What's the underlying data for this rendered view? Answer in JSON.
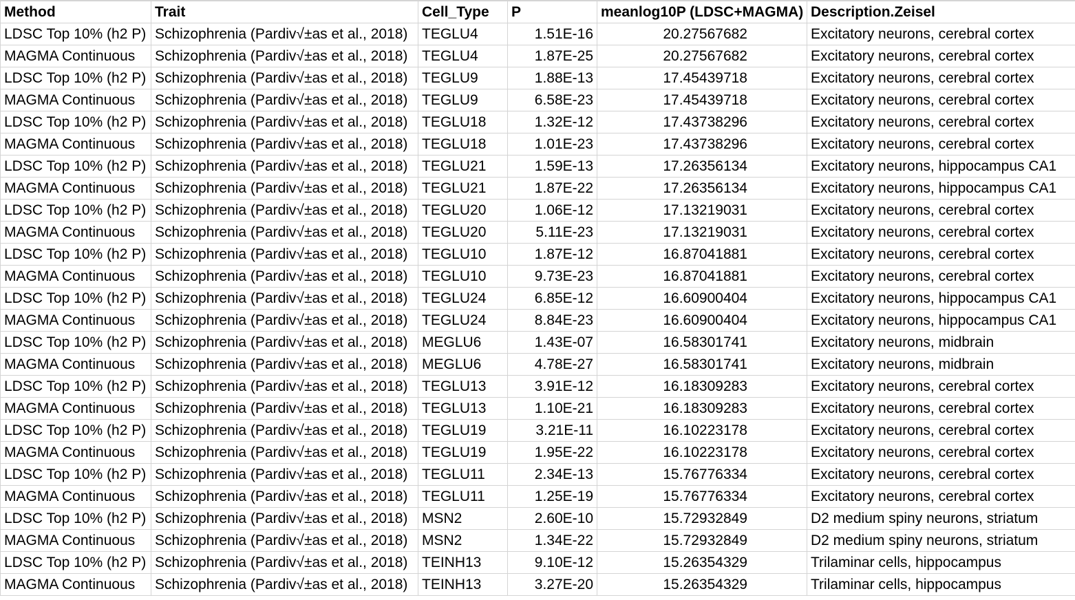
{
  "headers": {
    "method": "Method",
    "trait": "Trait",
    "cell_type": "Cell_Type",
    "p": "P",
    "meanlog": "meanlog10P (LDSC+MAGMA)",
    "description": "Description.Zeisel"
  },
  "rows": [
    {
      "method": "LDSC Top 10% (h2 P)",
      "trait": "Schizophrenia (Pardiv√±as et al., 2018)",
      "cell_type": "TEGLU4",
      "p": "1.51E-16",
      "meanlog": "20.27567682",
      "description": "Excitatory neurons, cerebral cortex"
    },
    {
      "method": "MAGMA Continuous",
      "trait": "Schizophrenia (Pardiv√±as et al., 2018)",
      "cell_type": "TEGLU4",
      "p": "1.87E-25",
      "meanlog": "20.27567682",
      "description": "Excitatory neurons, cerebral cortex"
    },
    {
      "method": "LDSC Top 10% (h2 P)",
      "trait": "Schizophrenia (Pardiv√±as et al., 2018)",
      "cell_type": "TEGLU9",
      "p": "1.88E-13",
      "meanlog": "17.45439718",
      "description": "Excitatory neurons, cerebral cortex"
    },
    {
      "method": "MAGMA Continuous",
      "trait": "Schizophrenia (Pardiv√±as et al., 2018)",
      "cell_type": "TEGLU9",
      "p": "6.58E-23",
      "meanlog": "17.45439718",
      "description": "Excitatory neurons, cerebral cortex"
    },
    {
      "method": "LDSC Top 10% (h2 P)",
      "trait": "Schizophrenia (Pardiv√±as et al., 2018)",
      "cell_type": "TEGLU18",
      "p": "1.32E-12",
      "meanlog": "17.43738296",
      "description": "Excitatory neurons, cerebral cortex"
    },
    {
      "method": "MAGMA Continuous",
      "trait": "Schizophrenia (Pardiv√±as et al., 2018)",
      "cell_type": "TEGLU18",
      "p": "1.01E-23",
      "meanlog": "17.43738296",
      "description": "Excitatory neurons, cerebral cortex"
    },
    {
      "method": "LDSC Top 10% (h2 P)",
      "trait": "Schizophrenia (Pardiv√±as et al., 2018)",
      "cell_type": "TEGLU21",
      "p": "1.59E-13",
      "meanlog": "17.26356134",
      "description": "Excitatory neurons, hippocampus CA1"
    },
    {
      "method": "MAGMA Continuous",
      "trait": "Schizophrenia (Pardiv√±as et al., 2018)",
      "cell_type": "TEGLU21",
      "p": "1.87E-22",
      "meanlog": "17.26356134",
      "description": "Excitatory neurons, hippocampus CA1"
    },
    {
      "method": "LDSC Top 10% (h2 P)",
      "trait": "Schizophrenia (Pardiv√±as et al., 2018)",
      "cell_type": "TEGLU20",
      "p": "1.06E-12",
      "meanlog": "17.13219031",
      "description": "Excitatory neurons, cerebral cortex"
    },
    {
      "method": "MAGMA Continuous",
      "trait": "Schizophrenia (Pardiv√±as et al., 2018)",
      "cell_type": "TEGLU20",
      "p": "5.11E-23",
      "meanlog": "17.13219031",
      "description": "Excitatory neurons, cerebral cortex"
    },
    {
      "method": "LDSC Top 10% (h2 P)",
      "trait": "Schizophrenia (Pardiv√±as et al., 2018)",
      "cell_type": "TEGLU10",
      "p": "1.87E-12",
      "meanlog": "16.87041881",
      "description": "Excitatory neurons, cerebral cortex"
    },
    {
      "method": "MAGMA Continuous",
      "trait": "Schizophrenia (Pardiv√±as et al., 2018)",
      "cell_type": "TEGLU10",
      "p": "9.73E-23",
      "meanlog": "16.87041881",
      "description": "Excitatory neurons, cerebral cortex"
    },
    {
      "method": "LDSC Top 10% (h2 P)",
      "trait": "Schizophrenia (Pardiv√±as et al., 2018)",
      "cell_type": "TEGLU24",
      "p": "6.85E-12",
      "meanlog": "16.60900404",
      "description": "Excitatory neurons, hippocampus CA1"
    },
    {
      "method": "MAGMA Continuous",
      "trait": "Schizophrenia (Pardiv√±as et al., 2018)",
      "cell_type": "TEGLU24",
      "p": "8.84E-23",
      "meanlog": "16.60900404",
      "description": "Excitatory neurons, hippocampus CA1"
    },
    {
      "method": "LDSC Top 10% (h2 P)",
      "trait": "Schizophrenia (Pardiv√±as et al., 2018)",
      "cell_type": "MEGLU6",
      "p": "1.43E-07",
      "meanlog": "16.58301741",
      "description": "Excitatory neurons, midbrain"
    },
    {
      "method": "MAGMA Continuous",
      "trait": "Schizophrenia (Pardiv√±as et al., 2018)",
      "cell_type": "MEGLU6",
      "p": "4.78E-27",
      "meanlog": "16.58301741",
      "description": "Excitatory neurons, midbrain"
    },
    {
      "method": "LDSC Top 10% (h2 P)",
      "trait": "Schizophrenia (Pardiv√±as et al., 2018)",
      "cell_type": "TEGLU13",
      "p": "3.91E-12",
      "meanlog": "16.18309283",
      "description": "Excitatory neurons, cerebral cortex"
    },
    {
      "method": "MAGMA Continuous",
      "trait": "Schizophrenia (Pardiv√±as et al., 2018)",
      "cell_type": "TEGLU13",
      "p": "1.10E-21",
      "meanlog": "16.18309283",
      "description": "Excitatory neurons, cerebral cortex"
    },
    {
      "method": "LDSC Top 10% (h2 P)",
      "trait": "Schizophrenia (Pardiv√±as et al., 2018)",
      "cell_type": "TEGLU19",
      "p": "3.21E-11",
      "meanlog": "16.10223178",
      "description": "Excitatory neurons, cerebral cortex"
    },
    {
      "method": "MAGMA Continuous",
      "trait": "Schizophrenia (Pardiv√±as et al., 2018)",
      "cell_type": "TEGLU19",
      "p": "1.95E-22",
      "meanlog": "16.10223178",
      "description": "Excitatory neurons, cerebral cortex"
    },
    {
      "method": "LDSC Top 10% (h2 P)",
      "trait": "Schizophrenia (Pardiv√±as et al., 2018)",
      "cell_type": "TEGLU11",
      "p": "2.34E-13",
      "meanlog": "15.76776334",
      "description": "Excitatory neurons, cerebral cortex"
    },
    {
      "method": "MAGMA Continuous",
      "trait": "Schizophrenia (Pardiv√±as et al., 2018)",
      "cell_type": "TEGLU11",
      "p": "1.25E-19",
      "meanlog": "15.76776334",
      "description": "Excitatory neurons, cerebral cortex"
    },
    {
      "method": "LDSC Top 10% (h2 P)",
      "trait": "Schizophrenia (Pardiv√±as et al., 2018)",
      "cell_type": "MSN2",
      "p": "2.60E-10",
      "meanlog": "15.72932849",
      "description": "D2 medium spiny neurons, striatum"
    },
    {
      "method": "MAGMA Continuous",
      "trait": "Schizophrenia (Pardiv√±as et al., 2018)",
      "cell_type": "MSN2",
      "p": "1.34E-22",
      "meanlog": "15.72932849",
      "description": "D2 medium spiny neurons, striatum"
    },
    {
      "method": "LDSC Top 10% (h2 P)",
      "trait": "Schizophrenia (Pardiv√±as et al., 2018)",
      "cell_type": "TEINH13",
      "p": "9.10E-12",
      "meanlog": "15.26354329",
      "description": "Trilaminar cells, hippocampus"
    },
    {
      "method": "MAGMA Continuous",
      "trait": "Schizophrenia (Pardiv√±as et al., 2018)",
      "cell_type": "TEINH13",
      "p": "3.27E-20",
      "meanlog": "15.26354329",
      "description": "Trilaminar cells, hippocampus"
    }
  ],
  "colors": {
    "gridline": "#d4d4d4",
    "text": "#000000",
    "background": "#ffffff"
  }
}
